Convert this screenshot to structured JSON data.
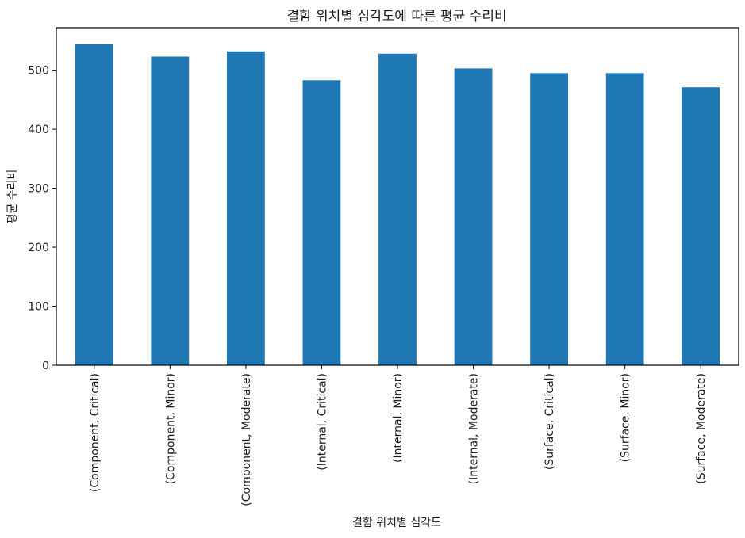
{
  "chart_data": {
    "type": "bar",
    "title": "결함 위치별 심각도에 따른 평균 수리비",
    "xlabel": "결함 위치별 심각도",
    "ylabel": "평균 수리비",
    "categories": [
      "(Component, Critical)",
      "(Component, Minor)",
      "(Component, Moderate)",
      "(Internal, Critical)",
      "(Internal, Minor)",
      "(Internal, Moderate)",
      "(Surface, Critical)",
      "(Surface, Minor)",
      "(Surface, Moderate)"
    ],
    "values": [
      544,
      523,
      532,
      483,
      528,
      503,
      495,
      495,
      471
    ],
    "yticks": [
      0,
      100,
      200,
      300,
      400,
      500
    ],
    "ylim": [
      0,
      572
    ],
    "grid": false,
    "legend": "none",
    "bar_color": "#1f77b4"
  }
}
